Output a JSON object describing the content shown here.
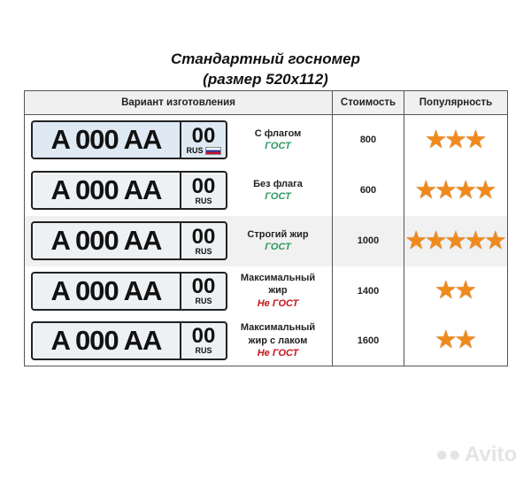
{
  "title_line1": "Стандартный госномер",
  "title_line2": "(размер 520x112)",
  "headers": [
    "Вариант изготовления",
    "Стоимость",
    "Популярность"
  ],
  "rows": [
    {
      "plate": {
        "letter1": "А",
        "digits": "000",
        "letters": "АА",
        "region": "00",
        "country": "RUS",
        "flag": true
      },
      "name": "С флагом",
      "status": "ГОСТ",
      "status_color": "#2e9a5f",
      "price": "800",
      "stars": 3
    },
    {
      "plate": {
        "letter1": "А",
        "digits": "000",
        "letters": "АА",
        "region": "00",
        "country": "RUS",
        "flag": false
      },
      "name": "Без флага",
      "status": "ГОСТ",
      "status_color": "#2e9a5f",
      "price": "600",
      "stars": 4
    },
    {
      "plate": {
        "letter1": "А",
        "digits": "000",
        "letters": "АА",
        "region": "00",
        "country": "RUS",
        "flag": false
      },
      "name": "Строгий жир",
      "status": "ГОСТ",
      "status_color": "#2e9a5f",
      "price": "1000",
      "stars": 5
    },
    {
      "plate": {
        "letter1": "А",
        "digits": "000",
        "letters": "АА",
        "region": "00",
        "country": "RUS",
        "flag": false
      },
      "name": "Максимальный жир",
      "status": "Не ГОСТ",
      "status_color": "#c4161c",
      "price": "1400",
      "stars": 2
    },
    {
      "plate": {
        "letter1": "А",
        "digits": "000",
        "letters": "АА",
        "region": "00",
        "country": "RUS",
        "flag": false
      },
      "name": "Максимальный жир с лаком",
      "status": "Не ГОСТ",
      "status_color": "#c4161c",
      "price": "1600",
      "stars": 2
    }
  ],
  "watermark": "Avito",
  "star_color": "#f08a1c"
}
